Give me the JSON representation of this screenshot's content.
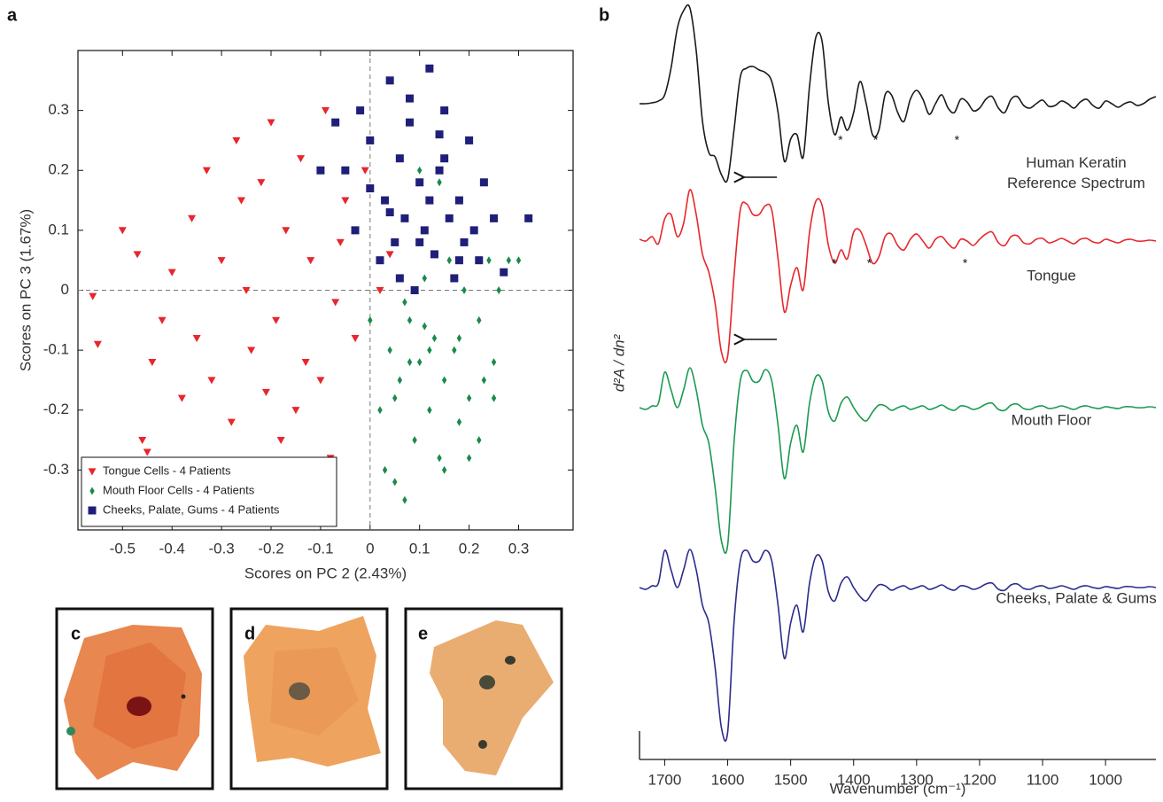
{
  "panels": [
    "a",
    "b",
    "c",
    "d",
    "e"
  ],
  "chart_data": [
    {
      "type": "scatter",
      "xlabel": "Scores on PC 2 (2.43%)",
      "ylabel": "Scores on PC 3 (1.67%)",
      "xlim": [
        -0.59,
        0.41
      ],
      "ylim": [
        -0.4,
        0.4
      ],
      "xticks": [
        -0.5,
        -0.4,
        -0.3,
        -0.2,
        -0.1,
        0,
        0.1,
        0.2,
        0.3
      ],
      "yticks": [
        -0.3,
        -0.2,
        -0.1,
        0,
        0.1,
        0.2,
        0.3
      ],
      "zero_lines": true,
      "legend": "lower left",
      "series": [
        {
          "name": "Tongue Cells - 4 Patients",
          "color": "#e8262b",
          "marker": "triangle-down",
          "x": [
            -0.56,
            -0.55,
            -0.5,
            -0.46,
            -0.45,
            -0.47,
            -0.44,
            -0.42,
            -0.4,
            -0.38,
            -0.36,
            -0.35,
            -0.33,
            -0.32,
            -0.3,
            -0.28,
            -0.27,
            -0.25,
            -0.24,
            -0.22,
            -0.2,
            -0.19,
            -0.17,
            -0.15,
            -0.14,
            -0.12,
            -0.1,
            -0.09,
            -0.07,
            -0.05,
            -0.03,
            -0.01,
            0.02,
            0.04,
            -0.08,
            -0.18,
            -0.26,
            -0.13,
            -0.06,
            -0.21
          ],
          "values": [
            -0.01,
            -0.09,
            0.1,
            -0.25,
            -0.27,
            0.06,
            -0.12,
            -0.05,
            0.03,
            -0.18,
            0.12,
            -0.08,
            0.2,
            -0.15,
            0.05,
            -0.22,
            0.25,
            0.0,
            -0.1,
            0.18,
            0.28,
            -0.05,
            0.1,
            -0.2,
            0.22,
            0.05,
            -0.15,
            0.3,
            -0.02,
            0.15,
            -0.08,
            0.2,
            0.0,
            0.06,
            -0.28,
            -0.25,
            0.15,
            -0.12,
            0.08,
            -0.17
          ]
        },
        {
          "name": "Mouth Floor Cells - 4 Patients",
          "color": "#1a8a4a",
          "marker": "diamond",
          "x": [
            0.0,
            0.02,
            0.04,
            0.05,
            0.06,
            0.07,
            0.08,
            0.09,
            0.1,
            0.11,
            0.12,
            0.13,
            0.14,
            0.15,
            0.16,
            0.17,
            0.18,
            0.19,
            0.2,
            0.21,
            0.22,
            0.23,
            0.24,
            0.25,
            0.26,
            0.28,
            0.3,
            0.03,
            0.07,
            0.12,
            0.15,
            0.18,
            0.22,
            0.1,
            0.05,
            0.14,
            0.2,
            0.08,
            0.25,
            0.11
          ],
          "values": [
            -0.05,
            -0.2,
            -0.1,
            -0.32,
            -0.15,
            -0.35,
            -0.05,
            -0.25,
            -0.12,
            0.02,
            -0.2,
            -0.08,
            -0.28,
            -0.15,
            0.05,
            -0.1,
            -0.22,
            0.0,
            -0.18,
            0.1,
            -0.05,
            -0.15,
            0.05,
            -0.12,
            0.0,
            0.05,
            0.05,
            -0.3,
            -0.02,
            -0.1,
            -0.3,
            -0.08,
            -0.25,
            0.2,
            -0.18,
            0.18,
            -0.28,
            -0.12,
            -0.18,
            -0.06
          ]
        },
        {
          "name": "Cheeks, Palate, Gums - 4 Patients",
          "color": "#1f1f7a",
          "marker": "square",
          "x": [
            -0.05,
            -0.03,
            -0.02,
            0.0,
            0.02,
            0.03,
            0.04,
            0.05,
            0.06,
            0.07,
            0.08,
            0.09,
            0.1,
            0.11,
            0.12,
            0.13,
            0.14,
            0.15,
            0.16,
            0.17,
            0.18,
            0.19,
            0.2,
            0.21,
            0.22,
            0.23,
            0.25,
            0.27,
            0.32,
            -0.1,
            -0.07,
            0.12,
            0.06,
            0.1,
            0.15,
            0.0,
            0.08,
            0.18,
            0.04,
            0.14
          ],
          "values": [
            0.2,
            0.1,
            0.3,
            0.25,
            0.05,
            0.15,
            0.35,
            0.08,
            0.22,
            0.12,
            0.28,
            0.0,
            0.18,
            0.1,
            0.37,
            0.06,
            0.2,
            0.3,
            0.12,
            0.02,
            0.15,
            0.08,
            0.25,
            0.1,
            0.05,
            0.18,
            0.12,
            0.03,
            0.12,
            0.2,
            0.28,
            0.15,
            0.02,
            0.08,
            0.22,
            0.17,
            0.32,
            0.05,
            0.13,
            0.26
          ]
        }
      ]
    },
    {
      "type": "line",
      "xlabel": "Wavenumber (cm⁻¹)",
      "ylabel": "d²A / dn²",
      "xlim": [
        1740,
        920
      ],
      "xticks": [
        1700,
        1600,
        1500,
        1400,
        1300,
        1200,
        1100,
        1000
      ],
      "x": [
        1740,
        1730,
        1720,
        1710,
        1700,
        1690,
        1680,
        1670,
        1660,
        1650,
        1640,
        1630,
        1620,
        1610,
        1600,
        1590,
        1580,
        1570,
        1560,
        1550,
        1540,
        1530,
        1520,
        1510,
        1500,
        1490,
        1480,
        1470,
        1460,
        1450,
        1440,
        1430,
        1420,
        1410,
        1400,
        1390,
        1380,
        1370,
        1360,
        1350,
        1340,
        1330,
        1320,
        1310,
        1300,
        1290,
        1280,
        1270,
        1260,
        1250,
        1240,
        1230,
        1220,
        1210,
        1200,
        1190,
        1180,
        1170,
        1160,
        1150,
        1140,
        1130,
        1120,
        1110,
        1100,
        1090,
        1080,
        1070,
        1060,
        1050,
        1040,
        1030,
        1020,
        1010,
        1000,
        990,
        980,
        970,
        960,
        950,
        940,
        930,
        920
      ],
      "series": [
        {
          "name": "Human Keratin Reference Spectrum",
          "color": "#1a1a1a",
          "values": [
            0,
            0,
            0.01,
            0.03,
            0.1,
            0.4,
            0.85,
            1.05,
            1.08,
            0.6,
            -0.2,
            -0.55,
            -0.6,
            -0.8,
            -0.85,
            -0.3,
            0.3,
            0.4,
            0.42,
            0.38,
            0.35,
            0.25,
            -0.1,
            -0.65,
            -0.4,
            -0.35,
            -0.6,
            0.2,
            0.75,
            0.7,
            0.0,
            -0.35,
            -0.15,
            -0.3,
            -0.1,
            0.25,
            0.0,
            -0.35,
            -0.3,
            0.1,
            0.1,
            -0.1,
            -0.2,
            0.05,
            0.15,
            0.05,
            -0.12,
            0.0,
            0.1,
            -0.05,
            -0.1,
            0.05,
            0.02,
            -0.08,
            -0.05,
            0.05,
            0.08,
            -0.05,
            -0.1,
            0.05,
            0.08,
            -0.02,
            -0.05,
            0.0,
            0.04,
            -0.03,
            -0.02,
            0.03,
            0.0,
            -0.05,
            0.02,
            0.05,
            -0.02,
            -0.05,
            0.03,
            0.0,
            -0.04,
            0.0,
            0.02,
            -0.02,
            0.0,
            0.05,
            0.08
          ],
          "annotations": [
            {
              "text": "*",
              "x": 1421
            },
            {
              "text": "*",
              "x": 1365
            },
            {
              "text": "*",
              "x": 1236
            }
          ]
        },
        {
          "name": "Tongue",
          "color": "#e8262b",
          "values": [
            0.02,
            0.0,
            0.05,
            -0.03,
            0.25,
            0.3,
            0.05,
            0.2,
            0.58,
            0.3,
            -0.15,
            -0.35,
            -0.7,
            -1.25,
            -1.3,
            -0.4,
            0.35,
            0.42,
            0.3,
            0.3,
            0.4,
            0.35,
            -0.2,
            -0.8,
            -0.5,
            -0.3,
            -0.55,
            0.1,
            0.45,
            0.4,
            -0.05,
            -0.25,
            -0.1,
            -0.2,
            0.1,
            0.12,
            -0.05,
            -0.25,
            -0.18,
            0.05,
            0.08,
            -0.05,
            -0.1,
            0.02,
            0.08,
            0.0,
            -0.08,
            0.02,
            0.05,
            -0.03,
            -0.08,
            0.02,
            0.0,
            -0.05,
            0.02,
            0.08,
            0.1,
            -0.02,
            -0.05,
            0.05,
            0.06,
            -0.02,
            -0.03,
            0.02,
            0.03,
            -0.02,
            0.0,
            0.03,
            0.0,
            -0.03,
            0.02,
            0.03,
            -0.01,
            -0.02,
            0.02,
            0.0,
            -0.02,
            0.01,
            0.02,
            0.0,
            0.0,
            0.01,
            0.0
          ],
          "annotations": [
            {
              "text": "*",
              "x": 1431
            },
            {
              "text": "*",
              "x": 1375
            },
            {
              "text": "*",
              "x": 1223
            }
          ]
        },
        {
          "name": "Mouth Floor",
          "color": "#1a9a50",
          "values": [
            0.0,
            -0.02,
            0.02,
            0.05,
            0.4,
            0.2,
            0.0,
            0.2,
            0.45,
            0.2,
            -0.2,
            -0.4,
            -0.9,
            -1.5,
            -1.55,
            -0.4,
            0.3,
            0.42,
            0.3,
            0.3,
            0.43,
            0.3,
            -0.2,
            -0.8,
            -0.4,
            -0.2,
            -0.5,
            0.05,
            0.35,
            0.3,
            -0.05,
            -0.15,
            0.05,
            0.12,
            0.0,
            -0.1,
            -0.15,
            -0.05,
            0.03,
            0.02,
            -0.03,
            0.0,
            0.02,
            -0.02,
            0.0,
            0.02,
            -0.02,
            0.0,
            0.03,
            -0.01,
            -0.03,
            0.02,
            0.01,
            -0.02,
            0.0,
            0.04,
            0.05,
            -0.02,
            -0.03,
            0.03,
            0.04,
            -0.01,
            -0.02,
            0.01,
            0.02,
            -0.01,
            0.0,
            0.02,
            0.0,
            -0.02,
            0.01,
            0.02,
            0.0,
            -0.01,
            0.01,
            0.0,
            -0.01,
            0.01,
            0.01,
            0.0,
            0.0,
            0.01,
            0.0
          ]
        },
        {
          "name": "Cheeks, Palate & Gums",
          "color": "#2b2b8c",
          "values": [
            0.0,
            -0.02,
            0.02,
            0.05,
            0.42,
            0.2,
            0.0,
            0.2,
            0.43,
            0.2,
            -0.2,
            -0.4,
            -0.9,
            -1.58,
            -1.63,
            -0.4,
            0.3,
            0.42,
            0.3,
            0.3,
            0.42,
            0.3,
            -0.2,
            -0.8,
            -0.4,
            -0.2,
            -0.5,
            0.05,
            0.35,
            0.3,
            -0.05,
            -0.15,
            0.05,
            0.12,
            0.0,
            -0.1,
            -0.15,
            -0.05,
            0.03,
            0.02,
            -0.03,
            0.0,
            0.02,
            -0.02,
            0.0,
            0.02,
            -0.02,
            0.0,
            0.03,
            -0.01,
            -0.03,
            0.02,
            0.01,
            -0.02,
            0.0,
            0.04,
            0.05,
            -0.02,
            -0.03,
            0.03,
            0.04,
            -0.01,
            -0.02,
            0.01,
            0.02,
            -0.01,
            0.0,
            0.02,
            0.0,
            -0.02,
            0.01,
            0.02,
            0.0,
            -0.01,
            0.01,
            0.0,
            -0.01,
            0.01,
            0.01,
            0.0,
            0.0,
            0.01,
            0.0
          ]
        }
      ]
    }
  ]
}
